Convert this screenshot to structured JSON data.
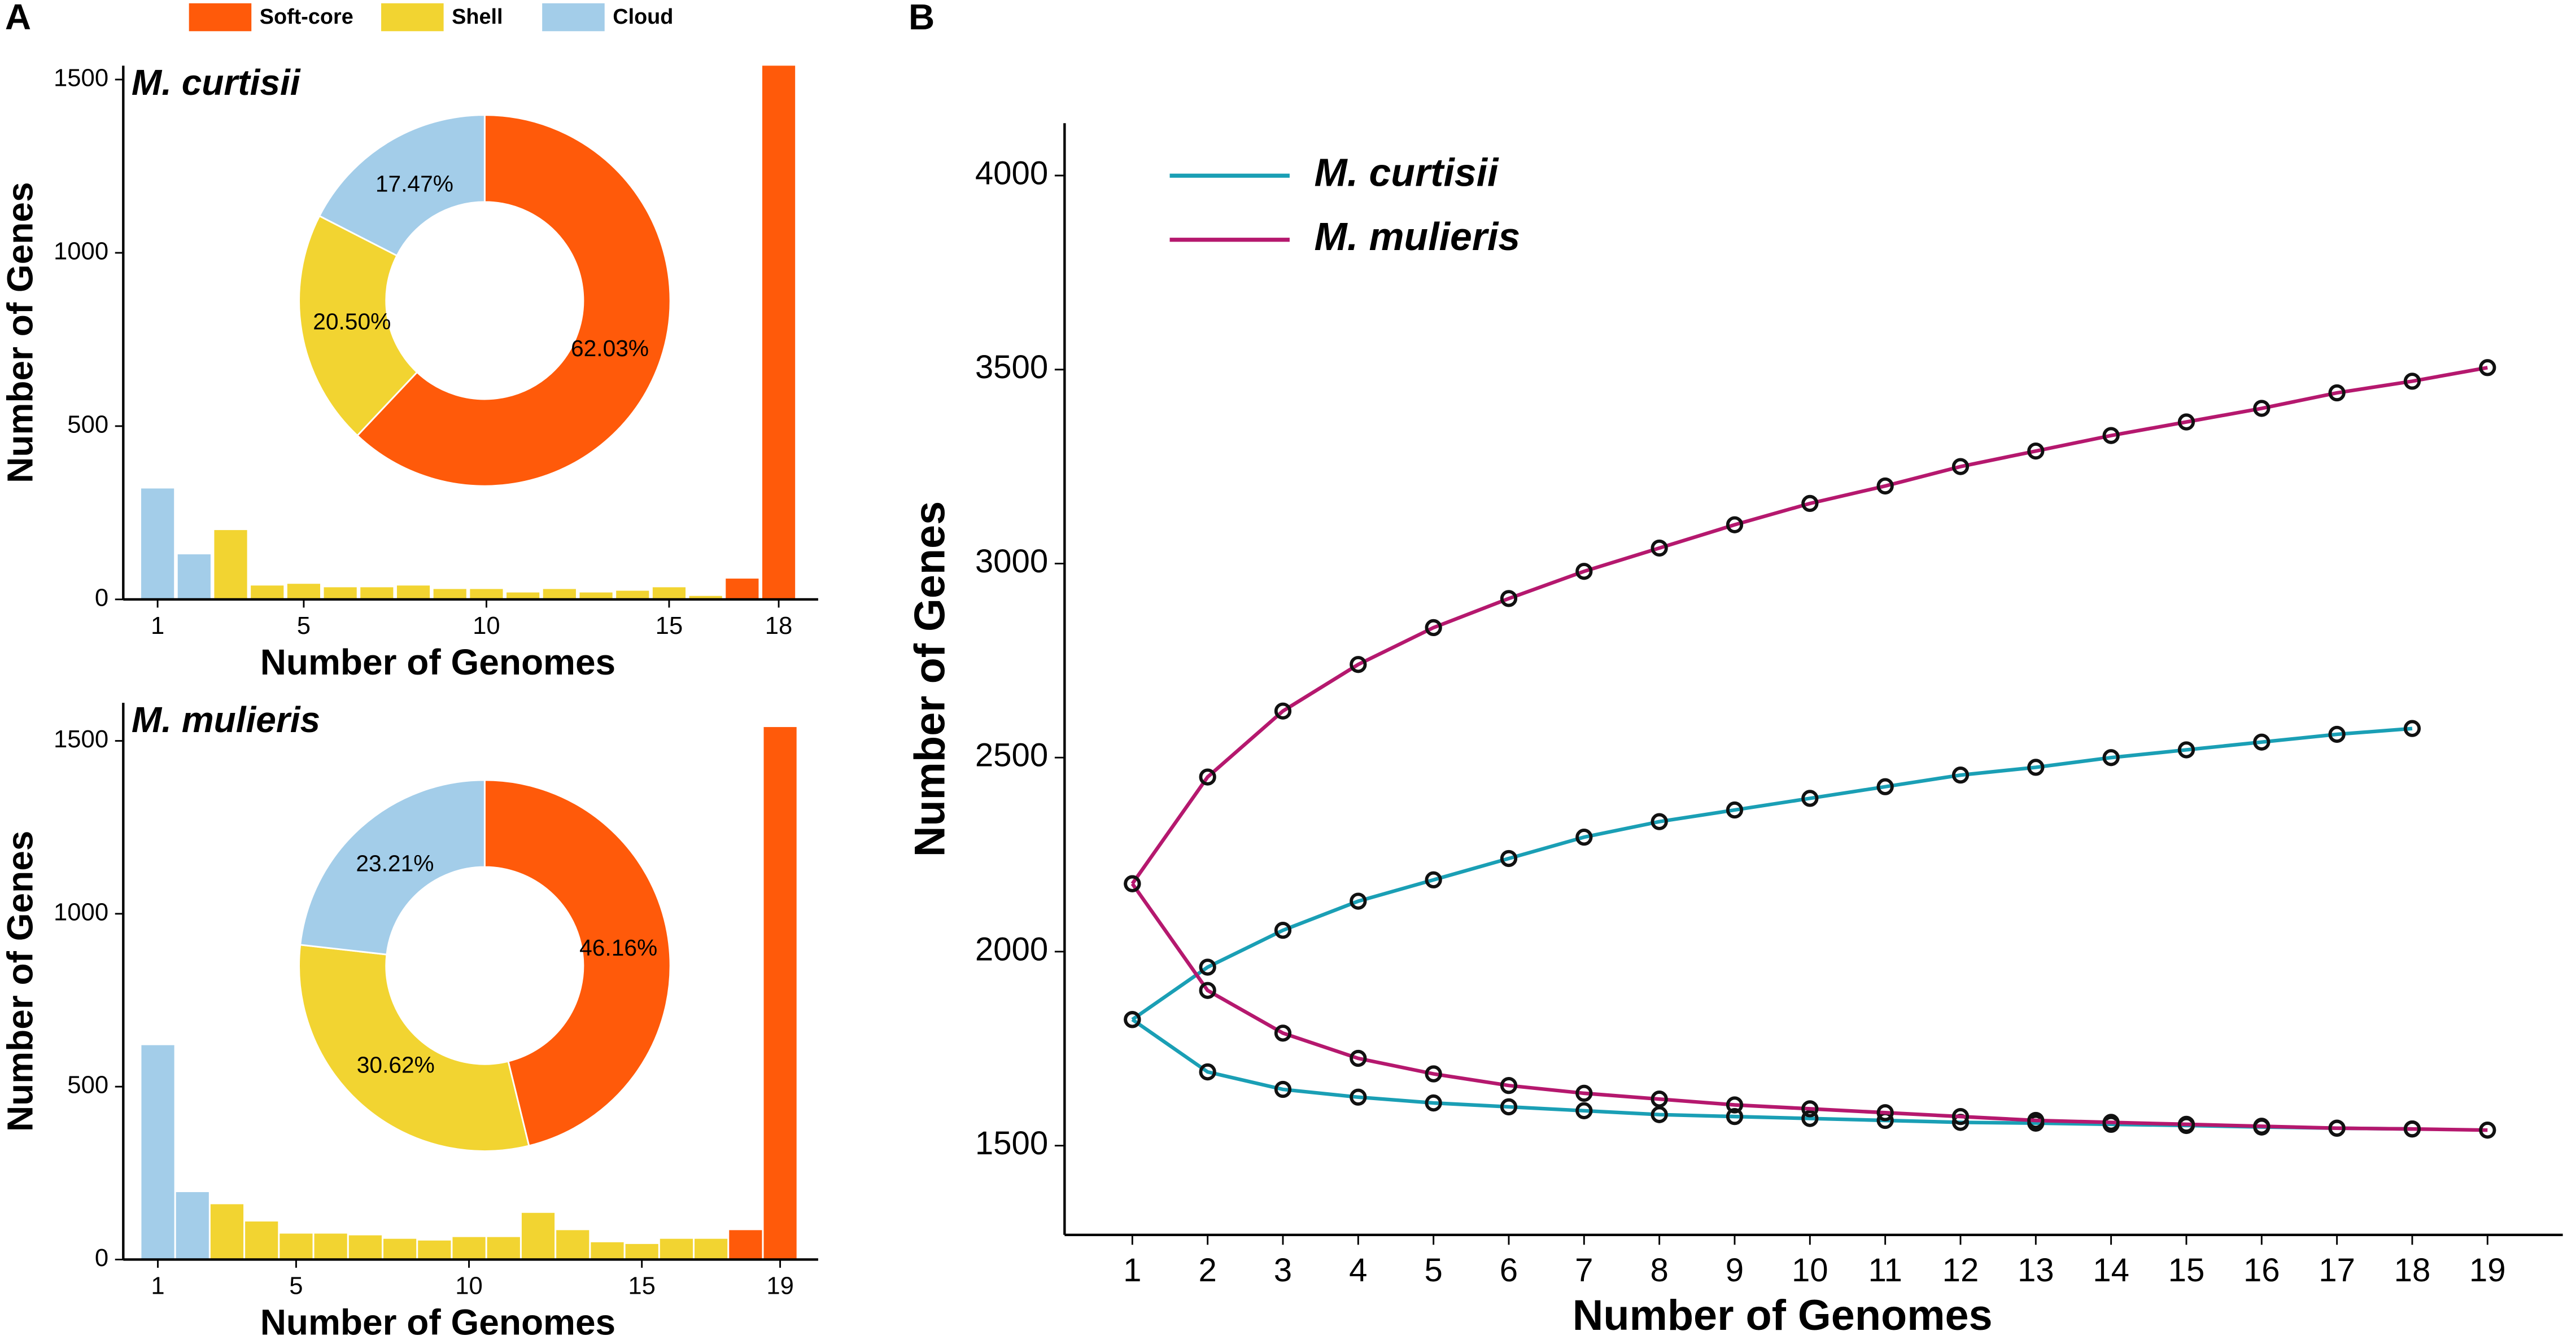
{
  "panels": [
    "A",
    "B"
  ],
  "legend": [
    {
      "name": "Soft-core",
      "color": "#ff5a0a"
    },
    {
      "name": "Shell",
      "color": "#f2d431"
    },
    {
      "name": "Cloud",
      "color": "#a3cde9"
    }
  ],
  "chart_data": [
    {
      "type": "bar",
      "title": "M. curtisii",
      "x_label": "Number of Genomes",
      "y_label": "Number of Genes",
      "x": [
        1,
        2,
        3,
        4,
        5,
        6,
        7,
        8,
        9,
        10,
        11,
        12,
        13,
        14,
        15,
        16,
        17,
        18
      ],
      "values": [
        320,
        130,
        200,
        40,
        45,
        35,
        35,
        40,
        30,
        30,
        20,
        30,
        20,
        25,
        35,
        10,
        60,
        1540
      ],
      "colors": [
        "#a3cde9",
        "#a3cde9",
        "#f2d431",
        "#f2d431",
        "#f2d431",
        "#f2d431",
        "#f2d431",
        "#f2d431",
        "#f2d431",
        "#f2d431",
        "#f2d431",
        "#f2d431",
        "#f2d431",
        "#f2d431",
        "#f2d431",
        "#f2d431",
        "#ff5a0a",
        "#ff5a0a"
      ],
      "xlim": [
        0.06,
        19.08
      ],
      "xticks": [
        1,
        5,
        10,
        15,
        18
      ],
      "ylim": [
        0,
        1540
      ],
      "yticks": [
        0,
        500,
        1000,
        1500
      ],
      "pie": {
        "values": [
          62.03,
          20.5,
          17.47
        ],
        "value_labels": [
          "62.03%",
          "20.50%",
          "17.47%"
        ],
        "colors": [
          "#ff5a0a",
          "#f2d431",
          "#a3cde9"
        ]
      }
    },
    {
      "type": "bar",
      "title": "M. mulieris",
      "x_label": "Number of Genomes",
      "y_label": "Number of Genes",
      "x": [
        1,
        2,
        3,
        4,
        5,
        6,
        7,
        8,
        9,
        10,
        11,
        12,
        13,
        14,
        15,
        16,
        17,
        18,
        19
      ],
      "values": [
        620,
        195,
        160,
        110,
        75,
        75,
        70,
        60,
        55,
        65,
        65,
        135,
        85,
        50,
        45,
        60,
        60,
        85,
        1540
      ],
      "colors": [
        "#a3cde9",
        "#a3cde9",
        "#f2d431",
        "#f2d431",
        "#f2d431",
        "#f2d431",
        "#f2d431",
        "#f2d431",
        "#f2d431",
        "#f2d431",
        "#f2d431",
        "#f2d431",
        "#f2d431",
        "#f2d431",
        "#f2d431",
        "#f2d431",
        "#f2d431",
        "#ff5a0a",
        "#ff5a0a"
      ],
      "xlim": [
        0,
        20.1
      ],
      "xticks": [
        1,
        5,
        10,
        15,
        19
      ],
      "ylim": [
        0,
        1610
      ],
      "yticks": [
        0,
        500,
        1000,
        1500
      ],
      "pie": {
        "values": [
          46.16,
          30.62,
          23.21
        ],
        "value_labels": [
          "46.16%",
          "30.62%",
          "23.21%"
        ],
        "colors": [
          "#ff5a0a",
          "#f2d431",
          "#a3cde9"
        ]
      }
    },
    {
      "type": "line",
      "x_label": "Number of Genomes",
      "y_label": "Number of Genes",
      "x": [
        1,
        2,
        3,
        4,
        5,
        6,
        7,
        8,
        9,
        10,
        11,
        12,
        13,
        14,
        15,
        16,
        17,
        18,
        19
      ],
      "xlim": [
        0.1,
        20
      ],
      "xticks": [
        1,
        2,
        3,
        4,
        5,
        6,
        7,
        8,
        9,
        10,
        11,
        12,
        13,
        14,
        15,
        16,
        17,
        18,
        19
      ],
      "ylim": [
        1270,
        4135
      ],
      "yticks": [
        1500,
        2000,
        2500,
        3000,
        3500,
        4000
      ],
      "series": [
        {
          "name": "M. curtisii",
          "color": "#1a9fb5",
          "curves": [
            [
              1825,
              1960,
              2055,
              2130,
              2185,
              2240,
              2295,
              2335,
              2365,
              2395,
              2425,
              2455,
              2475,
              2500,
              2520,
              2540,
              2560,
              2575
            ],
            [
              1825,
              1690,
              1645,
              1625,
              1610,
              1600,
              1590,
              1580,
              1575,
              1570,
              1565,
              1560,
              1558,
              1555,
              1552,
              1548,
              1545,
              1543
            ]
          ]
        },
        {
          "name": "M. mulieris",
          "color": "#b5186e",
          "curves": [
            [
              2175,
              2450,
              2620,
              2740,
              2835,
              2910,
              2980,
              3040,
              3100,
              3155,
              3200,
              3250,
              3290,
              3330,
              3365,
              3400,
              3440,
              3470,
              3505
            ],
            [
              2175,
              1900,
              1790,
              1725,
              1685,
              1655,
              1635,
              1620,
              1605,
              1595,
              1585,
              1575,
              1565,
              1560,
              1555,
              1550,
              1545,
              1543,
              1540
            ]
          ]
        }
      ]
    }
  ]
}
